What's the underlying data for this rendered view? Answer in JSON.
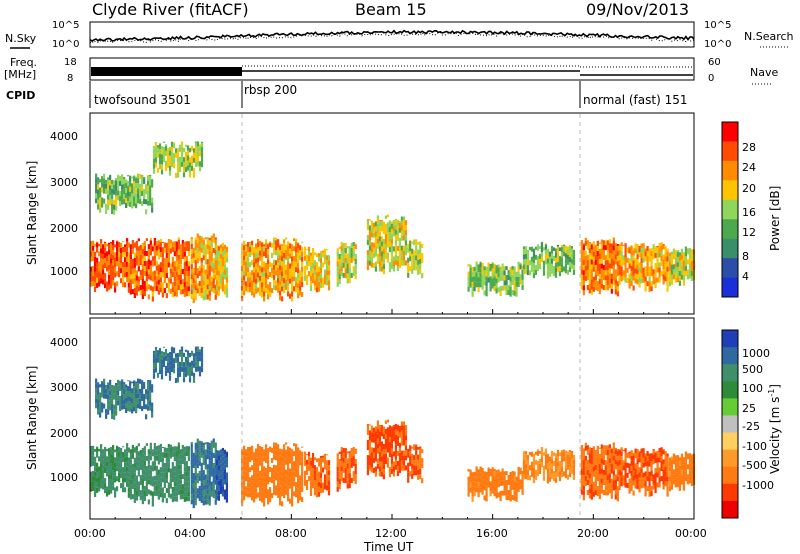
{
  "header": {
    "station": "Clyde River (fitACF)",
    "beam": "Beam 15",
    "date": "09/Nov/2013"
  },
  "top_panels": {
    "nsky_label": "N.Sky",
    "nsky_ticks": [
      "10^5",
      "10^0"
    ],
    "nsearch_label": "N.Search",
    "nsearch_ticks": [
      "10^5",
      "10^0"
    ],
    "freq_label": "Freq.",
    "freq_unit": "[MHz]",
    "freq_ticks": [
      "18",
      "8"
    ],
    "nave_label": "Nave",
    "nave_ticks": [
      "60",
      "0"
    ],
    "cpid_label": "CPID",
    "cpid_modes": [
      {
        "label": "twofsound 3501",
        "start_hour": 0
      },
      {
        "label": "rbsp 200",
        "start_hour": 6
      },
      {
        "label": "normal (fast) 151",
        "start_hour": 19.5
      }
    ]
  },
  "x_axis": {
    "label": "Time UT",
    "ticks": [
      "00:00",
      "04:00",
      "08:00",
      "12:00",
      "16:00",
      "20:00",
      "00:00"
    ],
    "range_hours": [
      0,
      24
    ]
  },
  "power_panel": {
    "ylabel": "Slant Range [km]",
    "yticks": [
      "4000",
      "3000",
      "2000",
      "1000"
    ],
    "colorbar_label": "Power [dB]",
    "colorbar_ticks": [
      "28",
      "24",
      "20",
      "16",
      "12",
      "8",
      "4"
    ],
    "colorbar_colors": [
      "#ff0000",
      "#ff4c00",
      "#ff8c00",
      "#ffc400",
      "#8fd65a",
      "#4ea84e",
      "#3a8f6a",
      "#2b4fa8",
      "#1a2fd8"
    ]
  },
  "velocity_panel": {
    "ylabel": "Slant Range [km]",
    "yticks": [
      "4000",
      "3000",
      "2000",
      "1000"
    ],
    "colorbar_label": "Velocity [m s",
    "colorbar_sup": "-1",
    "colorbar_ticks": [
      "1000",
      "500",
      "100",
      "25",
      "-25",
      "-100",
      "-500",
      "-1000"
    ],
    "colorbar_colors": [
      "#1f3fb8",
      "#2e6aa0",
      "#3f8f6a",
      "#2e8b3a",
      "#66cc33",
      "#c0c0c0",
      "#ffd060",
      "#ff9a2a",
      "#ff7a10",
      "#ff3a00",
      "#ee0000"
    ]
  },
  "chart_data": {
    "type": "heatmap",
    "title": "Clyde River (fitACF)",
    "subtitle": "Beam 15",
    "date": "09/Nov/2013",
    "xlabel": "Time UT",
    "ylabel": "Slant Range [km]",
    "x_range_hours": [
      0,
      24
    ],
    "y_range_km": [
      200,
      4600
    ],
    "mode_boundaries_hours": [
      6,
      19.5
    ],
    "power_scale_db": [
      4,
      8,
      12,
      16,
      20,
      24,
      28
    ],
    "velocity_scale_ms": [
      -1000,
      -500,
      -100,
      -25,
      25,
      100,
      500,
      1000
    ],
    "scatter_bands": [
      {
        "t0": 0.0,
        "t1": 1.5,
        "r0": 800,
        "r1": 1800,
        "power_db": 26,
        "velocity_ms": 300
      },
      {
        "t0": 1.5,
        "t1": 4.0,
        "r0": 600,
        "r1": 1800,
        "power_db": 25,
        "velocity_ms": 350
      },
      {
        "t0": 4.0,
        "t1": 5.0,
        "r0": 550,
        "r1": 1900,
        "power_db": 22,
        "velocity_ms": 600
      },
      {
        "t0": 5.0,
        "t1": 5.5,
        "r0": 600,
        "r1": 1700,
        "power_db": 20,
        "velocity_ms": 900
      },
      {
        "t0": 0.2,
        "t1": 2.5,
        "r0": 2500,
        "r1": 3200,
        "power_db": 14,
        "velocity_ms": 500
      },
      {
        "t0": 2.5,
        "t1": 4.5,
        "r0": 3300,
        "r1": 3900,
        "power_db": 16,
        "velocity_ms": 600
      },
      {
        "t0": 6.0,
        "t1": 8.5,
        "r0": 600,
        "r1": 1800,
        "power_db": 22,
        "velocity_ms": -200
      },
      {
        "t0": 8.5,
        "t1": 9.5,
        "r0": 800,
        "r1": 1600,
        "power_db": 20,
        "velocity_ms": -250
      },
      {
        "t0": 9.8,
        "t1": 10.6,
        "r0": 900,
        "r1": 1700,
        "power_db": 18,
        "velocity_ms": -300
      },
      {
        "t0": 11.0,
        "t1": 12.6,
        "r0": 1200,
        "r1": 2300,
        "power_db": 18,
        "velocity_ms": -350
      },
      {
        "t0": 12.6,
        "t1": 13.2,
        "r0": 1100,
        "r1": 1800,
        "power_db": 16,
        "velocity_ms": -300
      },
      {
        "t0": 15.0,
        "t1": 17.2,
        "r0": 700,
        "r1": 1300,
        "power_db": 15,
        "velocity_ms": -150
      },
      {
        "t0": 17.2,
        "t1": 19.3,
        "r0": 1100,
        "r1": 1700,
        "power_db": 14,
        "velocity_ms": -100
      },
      {
        "t0": 19.5,
        "t1": 21.0,
        "r0": 700,
        "r1": 1800,
        "power_db": 24,
        "velocity_ms": -250
      },
      {
        "t0": 21.0,
        "t1": 23.0,
        "r0": 800,
        "r1": 1700,
        "power_db": 22,
        "velocity_ms": -300
      },
      {
        "t0": 23.0,
        "t1": 24.0,
        "r0": 900,
        "r1": 1600,
        "power_db": 18,
        "velocity_ms": -150
      }
    ]
  }
}
